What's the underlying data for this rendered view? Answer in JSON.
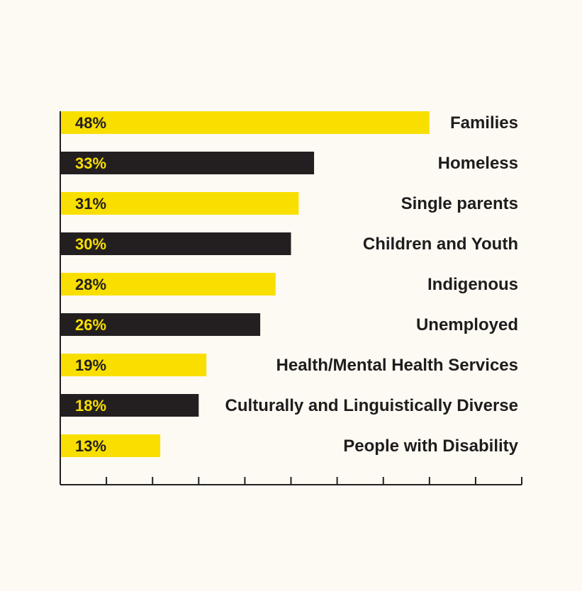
{
  "chart_data": {
    "type": "bar",
    "orientation": "horizontal",
    "categories": [
      "Families",
      "Homeless",
      "Single parents",
      "Children and Youth",
      "Indigenous",
      "Unemployed",
      "Health/Mental Health Services",
      "Culturally and Linguistically Diverse",
      "People with Disability"
    ],
    "values": [
      48,
      33,
      31,
      30,
      28,
      26,
      19,
      18,
      13
    ],
    "value_labels": [
      "48%",
      "33%",
      "31%",
      "30%",
      "28%",
      "26%",
      "19%",
      "18%",
      "13%"
    ],
    "title": "",
    "xlabel": "",
    "ylabel": "",
    "xlim": [
      0,
      60
    ],
    "x_tick_count": 10,
    "grid": false,
    "legend": "none",
    "colors": {
      "bar_alternating": [
        "#f9df00",
        "#231f20"
      ],
      "label_on_yellow": "#231f20",
      "label_on_black": "#f9df00",
      "category_text": "#1f1c1d",
      "axis": "#231f20",
      "background": "#fdfaf3"
    }
  }
}
